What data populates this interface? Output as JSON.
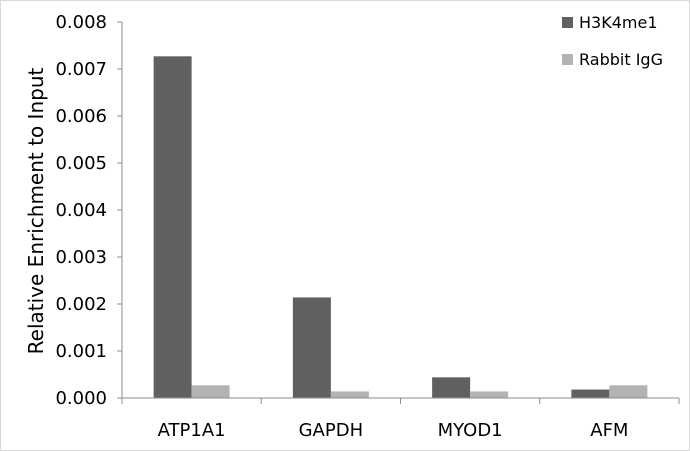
{
  "chart_data": {
    "type": "bar",
    "title": "",
    "xlabel": "",
    "ylabel": "Relative Enrichment to Input",
    "categories": [
      "ATP1A1",
      "GAPDH",
      "MYOD1",
      "AFM"
    ],
    "series": [
      {
        "name": "H3K4me1",
        "color": "#606060",
        "values": [
          0.00727,
          0.00214,
          0.00044,
          0.00018
        ]
      },
      {
        "name": "Rabbit IgG",
        "color": "#b3b3b3",
        "values": [
          0.00027,
          0.00014,
          0.00014,
          0.00027
        ]
      }
    ],
    "ylim": [
      0,
      0.008
    ],
    "yticks": [
      "0.000",
      "0.001",
      "0.002",
      "0.003",
      "0.004",
      "0.005",
      "0.006",
      "0.007",
      "0.008"
    ],
    "grid": false,
    "legend": "top-right",
    "axis_color": "#8c8c8c"
  }
}
